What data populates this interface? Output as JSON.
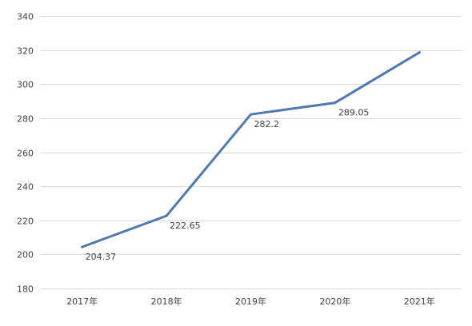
{
  "chart_data": {
    "type": "line",
    "title": "",
    "xlabel": "",
    "ylabel": "",
    "categories": [
      "2017年",
      "2018年",
      "2019年",
      "2020年",
      "2021年"
    ],
    "series": [
      {
        "values": [
          204.37,
          222.65,
          282.2,
          289.05,
          318.6
        ],
        "data_labels": [
          "204.37",
          "222.65",
          "282.2",
          "289.05",
          ""
        ]
      }
    ],
    "ylim": [
      180,
      340
    ],
    "yticks": [
      180,
      200,
      220,
      240,
      260,
      280,
      300,
      320,
      340
    ],
    "ytick_labels": [
      "180",
      "200",
      "220",
      "240",
      "260",
      "280",
      "300",
      "320",
      "340"
    ],
    "grid": true,
    "legend": "none",
    "colors": {
      "line": "#4e79ae",
      "grid": "#d9d9d9",
      "text": "#404040"
    }
  }
}
